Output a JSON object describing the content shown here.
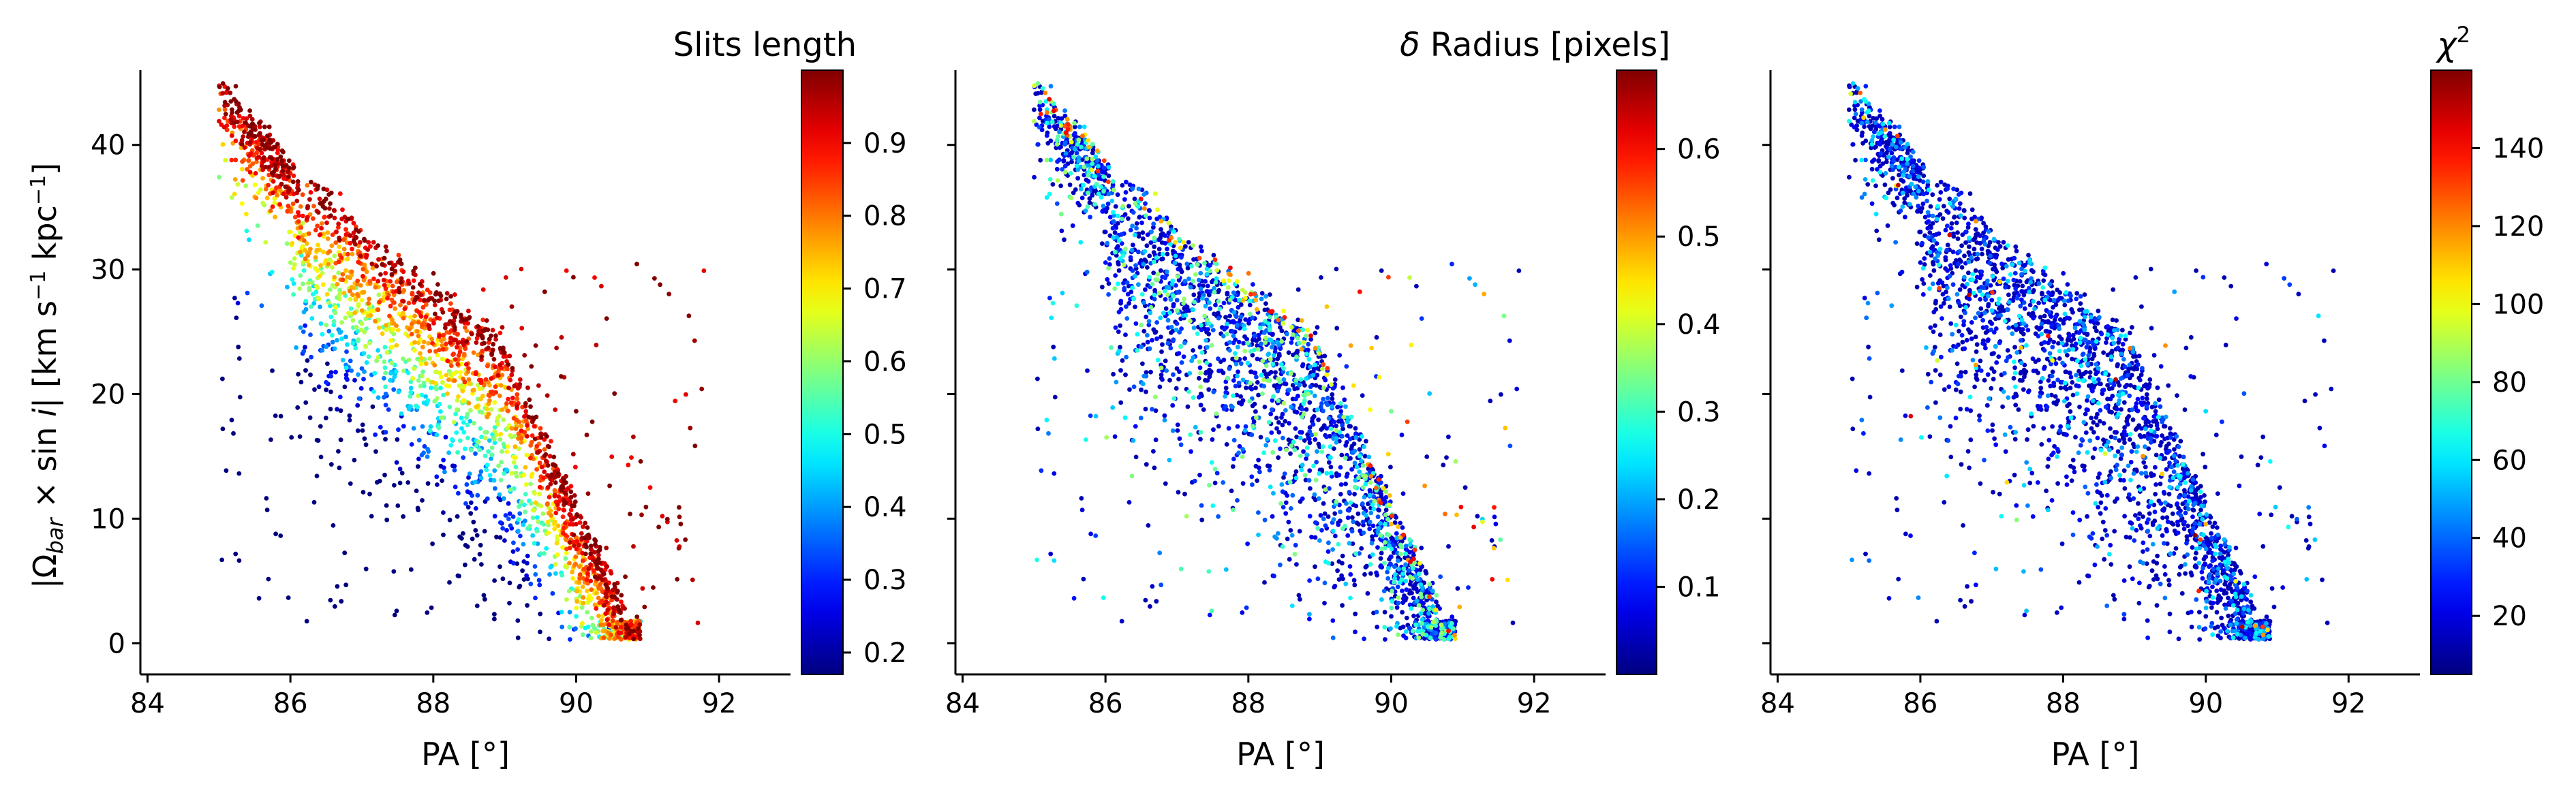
{
  "chart_data": [
    {
      "type": "scatter",
      "panel": "left",
      "xlabel": "PA [°]",
      "ylabel": "|Ω_bar × sin i|  [km s⁻¹ kpc⁻¹]",
      "ylabel_parts": [
        "|Ω",
        "bar",
        " × sin ",
        "i",
        "|  [km s",
        "−1",
        " kpc",
        "−1",
        "]"
      ],
      "xlim": [
        83.9,
        93.0
      ],
      "ylim": [
        -2.5,
        46.0
      ],
      "xticks": [
        84,
        86,
        88,
        90,
        92
      ],
      "yticks": [
        0,
        10,
        20,
        30,
        40
      ],
      "colorbar": {
        "title": "Slits length",
        "colormap": "jet",
        "range": [
          0.17,
          1.0
        ],
        "ticks": [
          0.2,
          0.3,
          0.4,
          0.5,
          0.6,
          0.7,
          0.8,
          0.9
        ],
        "color_trend": "high values along upper edge of the ridge, low values below"
      }
    },
    {
      "type": "scatter",
      "panel": "middle",
      "xlabel": "PA [°]",
      "ylabel": "",
      "xlim": [
        83.9,
        93.0
      ],
      "ylim": [
        -2.5,
        46.0
      ],
      "xticks": [
        84,
        86,
        88,
        90,
        92
      ],
      "yticks": [
        0,
        10,
        20,
        30,
        40
      ],
      "colorbar": {
        "title": "δ Radius [pixels]",
        "title_parts": [
          "δ",
          " Radius [pixels]"
        ],
        "colormap": "jet",
        "range": [
          0.0,
          0.69
        ],
        "ticks": [
          0.1,
          0.2,
          0.3,
          0.4,
          0.5,
          0.6
        ],
        "color_trend": "mostly low values, a few higher values along the upper edge"
      }
    },
    {
      "type": "scatter",
      "panel": "right",
      "xlabel": "PA [°]",
      "ylabel": "",
      "xlim": [
        83.9,
        93.0
      ],
      "ylim": [
        -2.5,
        46.0
      ],
      "xticks": [
        84,
        86,
        88,
        90,
        92
      ],
      "yticks": [
        0,
        10,
        20,
        30,
        40
      ],
      "colorbar": {
        "title": "χ²",
        "title_parts": [
          "χ",
          "2"
        ],
        "colormap": "jet",
        "range": [
          5,
          160
        ],
        "ticks": [
          20,
          40,
          60,
          80,
          100,
          120,
          140
        ],
        "color_trend": "almost all low values, rare high outliers"
      }
    }
  ],
  "point_cloud": {
    "description_ridge": [
      [
        85.0,
        45.0
      ],
      [
        86.0,
        38.5
      ],
      [
        87.0,
        33.5
      ],
      [
        88.0,
        28.5
      ],
      [
        89.0,
        24.0
      ],
      [
        90.0,
        11.0
      ],
      [
        90.6,
        4.0
      ]
    ],
    "x_range": [
      84.4,
      91.9
    ],
    "y_range": [
      0.3,
      45.5
    ],
    "n_points_per_panel": 2600
  }
}
